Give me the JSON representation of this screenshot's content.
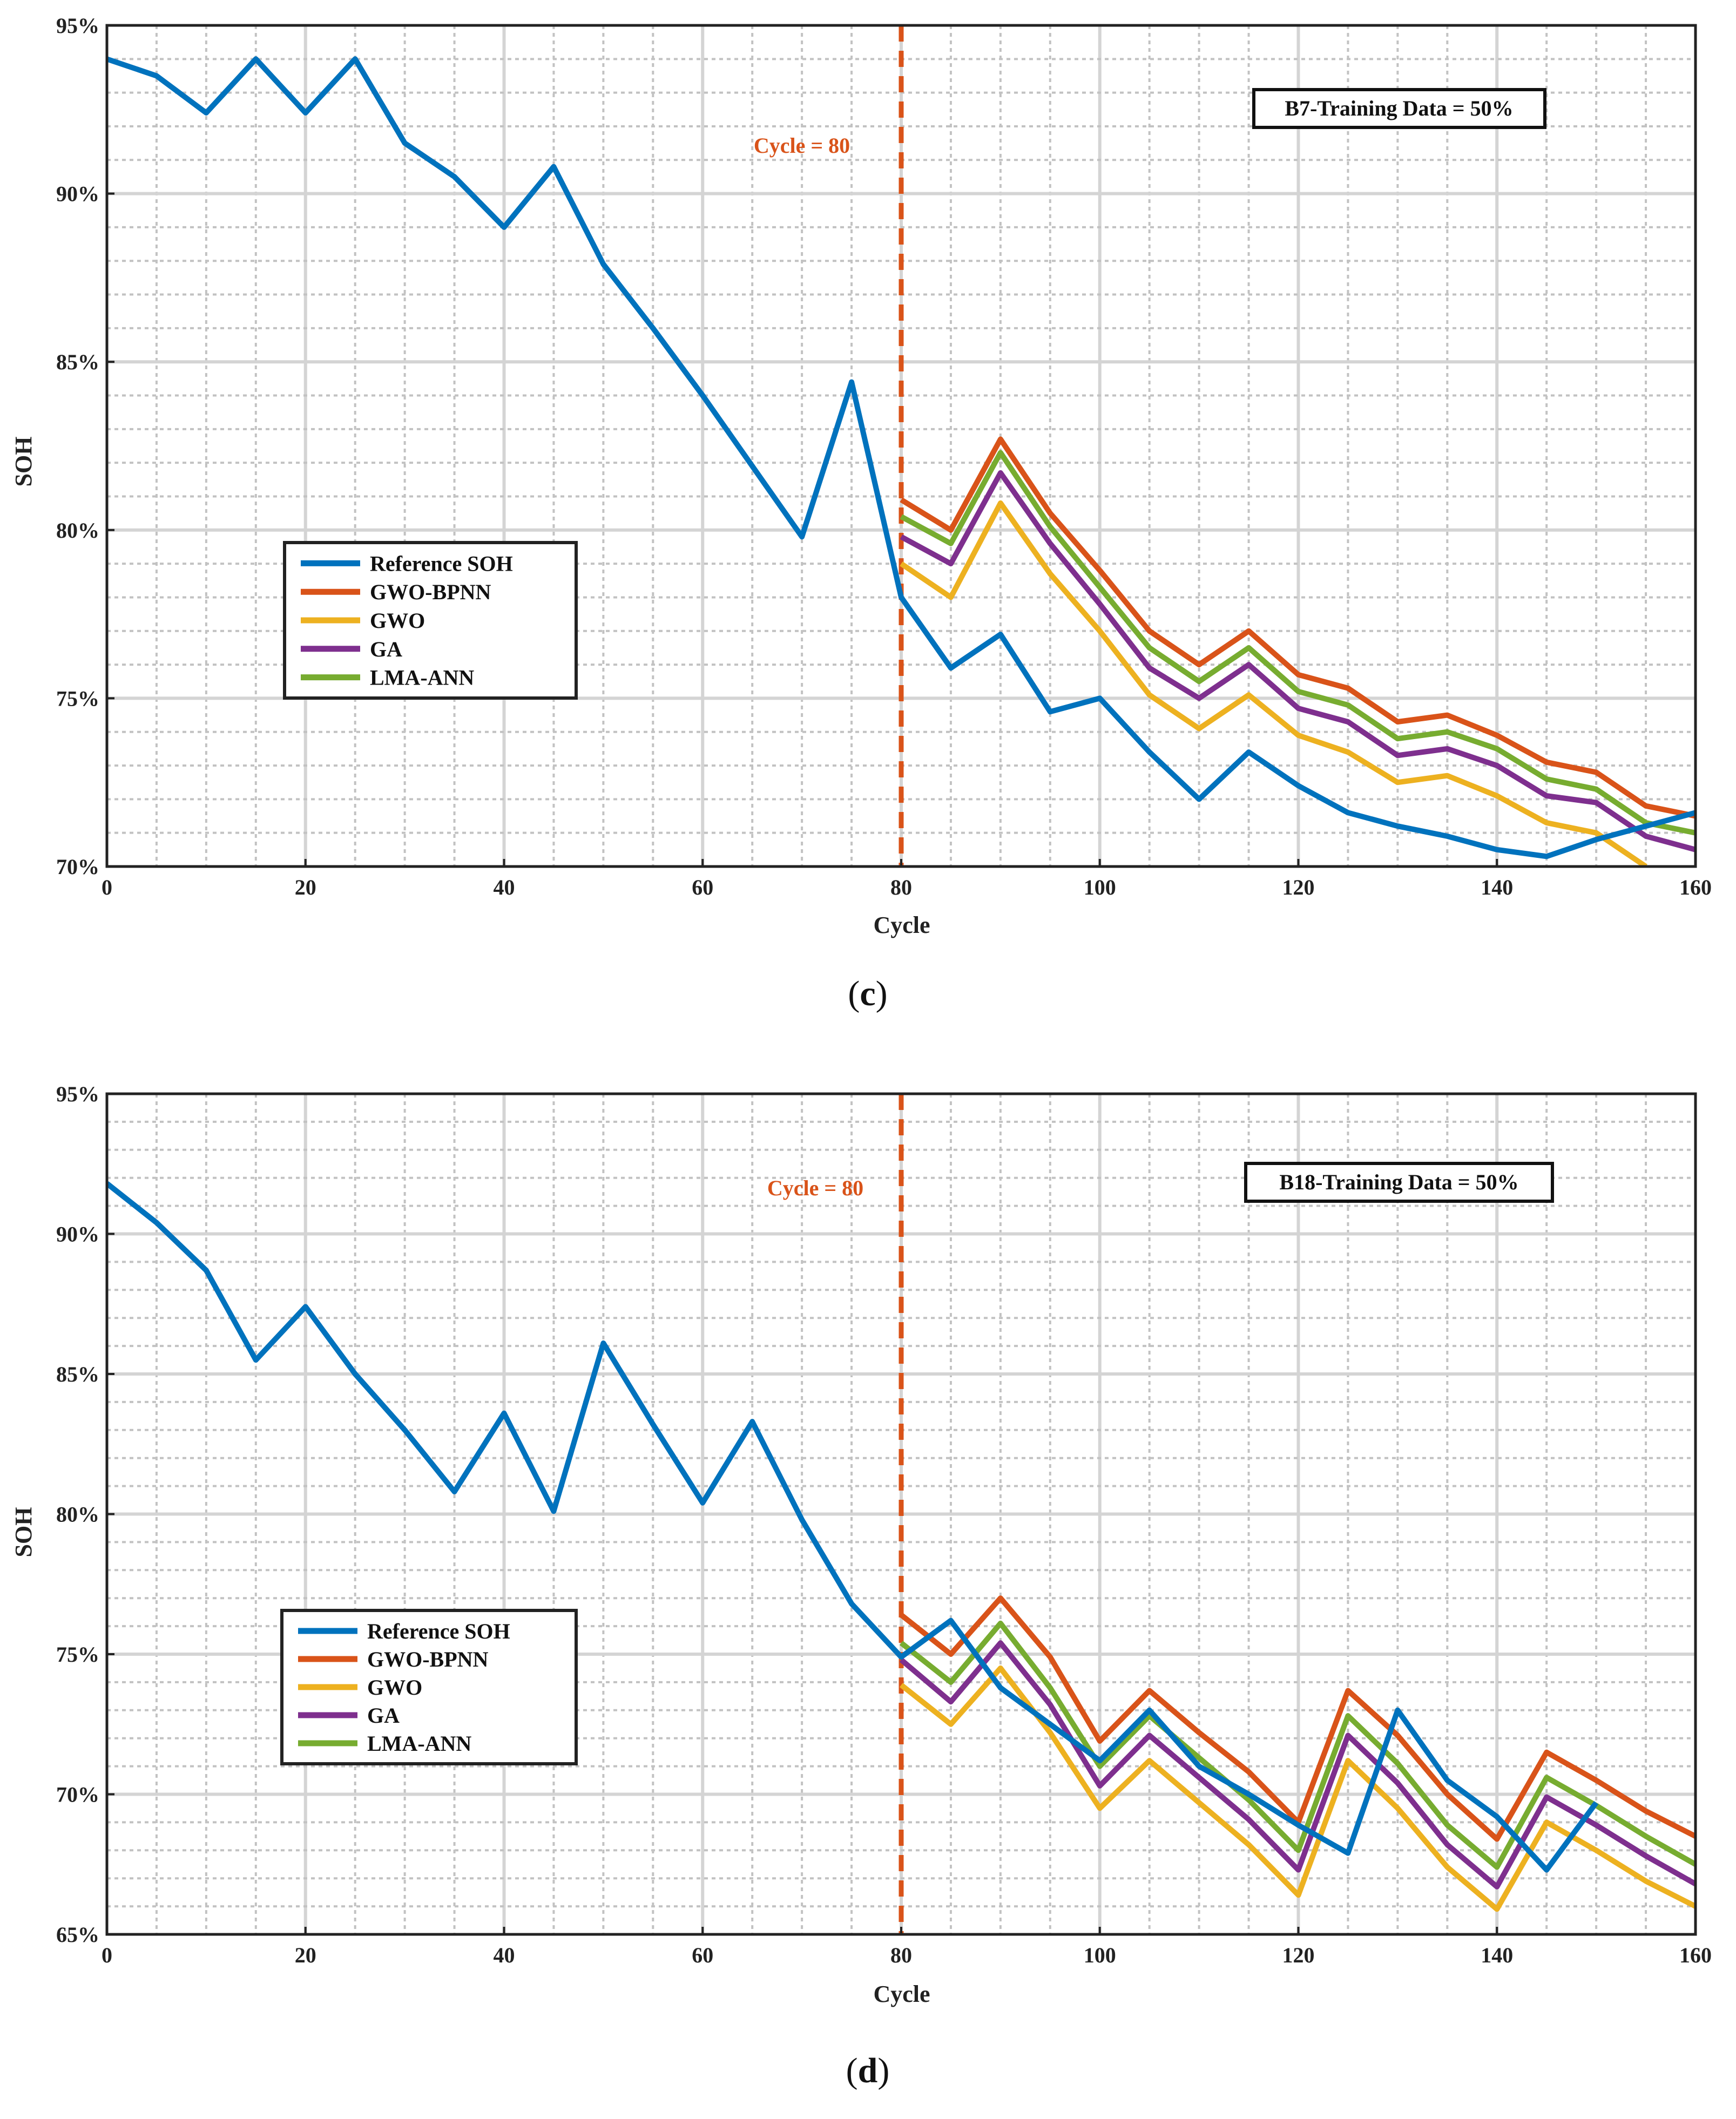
{
  "chart_data": [
    {
      "type": "line",
      "panel_label": "c",
      "xlabel": "Cycle",
      "ylabel": "SOH",
      "xlim": [
        0,
        160
      ],
      "ylim": [
        70,
        95
      ],
      "x_ticks": [
        "0",
        "20",
        "40",
        "60",
        "80",
        "100",
        "120",
        "140",
        "160"
      ],
      "y_ticks": [
        "70%",
        "75%",
        "80%",
        "85%",
        "90%",
        "95%"
      ],
      "grid": true,
      "legend_position": "center-left",
      "vline": {
        "x": 80,
        "label": "Cycle = 80",
        "color": "#D95319"
      },
      "annotation": "B7-Training Data = 50%",
      "series": [
        {
          "name": "Reference SOH",
          "color": "#0072BD",
          "x": [
            0,
            5,
            10,
            15,
            20,
            25,
            30,
            35,
            40,
            45,
            50,
            55,
            60,
            65,
            70,
            75,
            80,
            85,
            90,
            95,
            100,
            105,
            110,
            115,
            120,
            125,
            130,
            135,
            140,
            145,
            150,
            155,
            160
          ],
          "values": [
            94.0,
            93.5,
            92.4,
            94.0,
            92.4,
            94.0,
            91.5,
            90.5,
            89.0,
            90.8,
            87.9,
            86.0,
            84.0,
            81.9,
            79.8,
            84.4,
            78.0,
            75.9,
            76.9,
            74.6,
            75.0,
            73.4,
            72.0,
            73.4,
            72.4,
            71.6,
            71.2,
            70.9,
            70.5,
            70.3,
            70.8,
            71.2,
            71.6
          ]
        },
        {
          "name": "GWO-BPNN",
          "color": "#D95319",
          "x": [
            80,
            85,
            90,
            95,
            100,
            105,
            110,
            115,
            120,
            125,
            130,
            135,
            140,
            145,
            150,
            155,
            160
          ],
          "values": [
            80.9,
            80.0,
            82.7,
            80.5,
            78.8,
            77.0,
            76.0,
            77.0,
            75.7,
            75.3,
            74.3,
            74.5,
            73.9,
            73.1,
            72.8,
            71.8,
            71.5
          ]
        },
        {
          "name": "GWO",
          "color": "#EDB120",
          "x": [
            80,
            85,
            90,
            95,
            100,
            105,
            110,
            115,
            120,
            125,
            130,
            135,
            140,
            145,
            150,
            155
          ],
          "values": [
            79.0,
            78.0,
            80.8,
            78.7,
            77.0,
            75.1,
            74.1,
            75.1,
            73.9,
            73.4,
            72.5,
            72.7,
            72.1,
            71.3,
            71.0,
            70.0
          ]
        },
        {
          "name": "GA",
          "color": "#7E2F8E",
          "x": [
            80,
            85,
            90,
            95,
            100,
            105,
            110,
            115,
            120,
            125,
            130,
            135,
            140,
            145,
            150,
            155,
            160
          ],
          "values": [
            79.8,
            79.0,
            81.7,
            79.6,
            77.8,
            75.9,
            75.0,
            76.0,
            74.7,
            74.3,
            73.3,
            73.5,
            73.0,
            72.1,
            71.9,
            70.9,
            70.5
          ]
        },
        {
          "name": "LMA-ANN",
          "color": "#77AC30",
          "x": [
            80,
            85,
            90,
            95,
            100,
            105,
            110,
            115,
            120,
            125,
            130,
            135,
            140,
            145,
            150,
            155,
            160
          ],
          "values": [
            80.4,
            79.6,
            82.3,
            80.1,
            78.3,
            76.5,
            75.5,
            76.5,
            75.2,
            74.8,
            73.8,
            74.0,
            73.5,
            72.6,
            72.3,
            71.3,
            71.0
          ]
        }
      ]
    },
    {
      "type": "line",
      "panel_label": "d",
      "xlabel": "Cycle",
      "ylabel": "SOH",
      "xlim": [
        0,
        160
      ],
      "ylim": [
        65,
        95
      ],
      "x_ticks": [
        "0",
        "20",
        "40",
        "60",
        "80",
        "100",
        "120",
        "140",
        "160"
      ],
      "y_ticks": [
        "65%",
        "70%",
        "75%",
        "80%",
        "85%",
        "90%",
        "95%"
      ],
      "grid": true,
      "legend_position": "center-left",
      "vline": {
        "x": 80,
        "label": "Cycle = 80",
        "color": "#D95319"
      },
      "annotation": "B18-Training Data = 50%",
      "series": [
        {
          "name": "Reference SOH",
          "color": "#0072BD",
          "x": [
            0,
            5,
            10,
            15,
            20,
            25,
            30,
            35,
            40,
            45,
            50,
            55,
            60,
            65,
            70,
            75,
            80,
            85,
            90,
            95,
            100,
            105,
            110,
            115,
            120,
            125,
            130,
            135,
            140,
            145,
            150
          ],
          "values": [
            91.8,
            90.4,
            88.7,
            85.5,
            87.4,
            85.0,
            83.0,
            80.8,
            83.6,
            80.1,
            86.1,
            83.2,
            80.4,
            83.3,
            79.8,
            76.8,
            74.9,
            76.2,
            73.8,
            72.5,
            71.2,
            73.0,
            71.0,
            70.0,
            68.9,
            67.9,
            73.0,
            70.5,
            69.2,
            67.3,
            69.7
          ]
        },
        {
          "name": "GWO-BPNN",
          "color": "#D95319",
          "x": [
            80,
            85,
            90,
            95,
            100,
            105,
            110,
            115,
            120,
            125,
            130,
            135,
            140,
            145,
            150,
            155,
            160
          ],
          "values": [
            76.4,
            75.0,
            77.0,
            74.9,
            71.9,
            73.7,
            72.2,
            70.8,
            69.0,
            73.7,
            72.1,
            70.0,
            68.4,
            71.5,
            70.5,
            69.4,
            68.5
          ]
        },
        {
          "name": "GWO",
          "color": "#EDB120",
          "x": [
            80,
            85,
            90,
            95,
            100,
            105,
            110,
            115,
            120,
            125,
            130,
            135,
            140,
            145,
            150,
            155,
            160
          ],
          "values": [
            73.9,
            72.5,
            74.5,
            72.2,
            69.5,
            71.2,
            69.7,
            68.2,
            66.4,
            71.2,
            69.5,
            67.4,
            65.9,
            69.0,
            68.0,
            66.9,
            66.0
          ]
        },
        {
          "name": "GA",
          "color": "#7E2F8E",
          "x": [
            80,
            85,
            90,
            95,
            100,
            105,
            110,
            115,
            120,
            125,
            130,
            135,
            140,
            145,
            150,
            155,
            160
          ],
          "values": [
            74.8,
            73.3,
            75.4,
            73.2,
            70.3,
            72.1,
            70.6,
            69.1,
            67.3,
            72.1,
            70.4,
            68.2,
            66.7,
            69.9,
            68.9,
            67.8,
            66.8
          ]
        },
        {
          "name": "LMA-ANN",
          "color": "#77AC30",
          "x": [
            80,
            85,
            90,
            95,
            100,
            105,
            110,
            115,
            120,
            125,
            130,
            135,
            140,
            145,
            150,
            155,
            160
          ],
          "values": [
            75.4,
            74.0,
            76.1,
            73.8,
            71.0,
            72.8,
            71.3,
            69.8,
            68.0,
            72.8,
            71.1,
            68.9,
            67.4,
            70.6,
            69.6,
            68.5,
            67.5
          ]
        }
      ]
    }
  ]
}
